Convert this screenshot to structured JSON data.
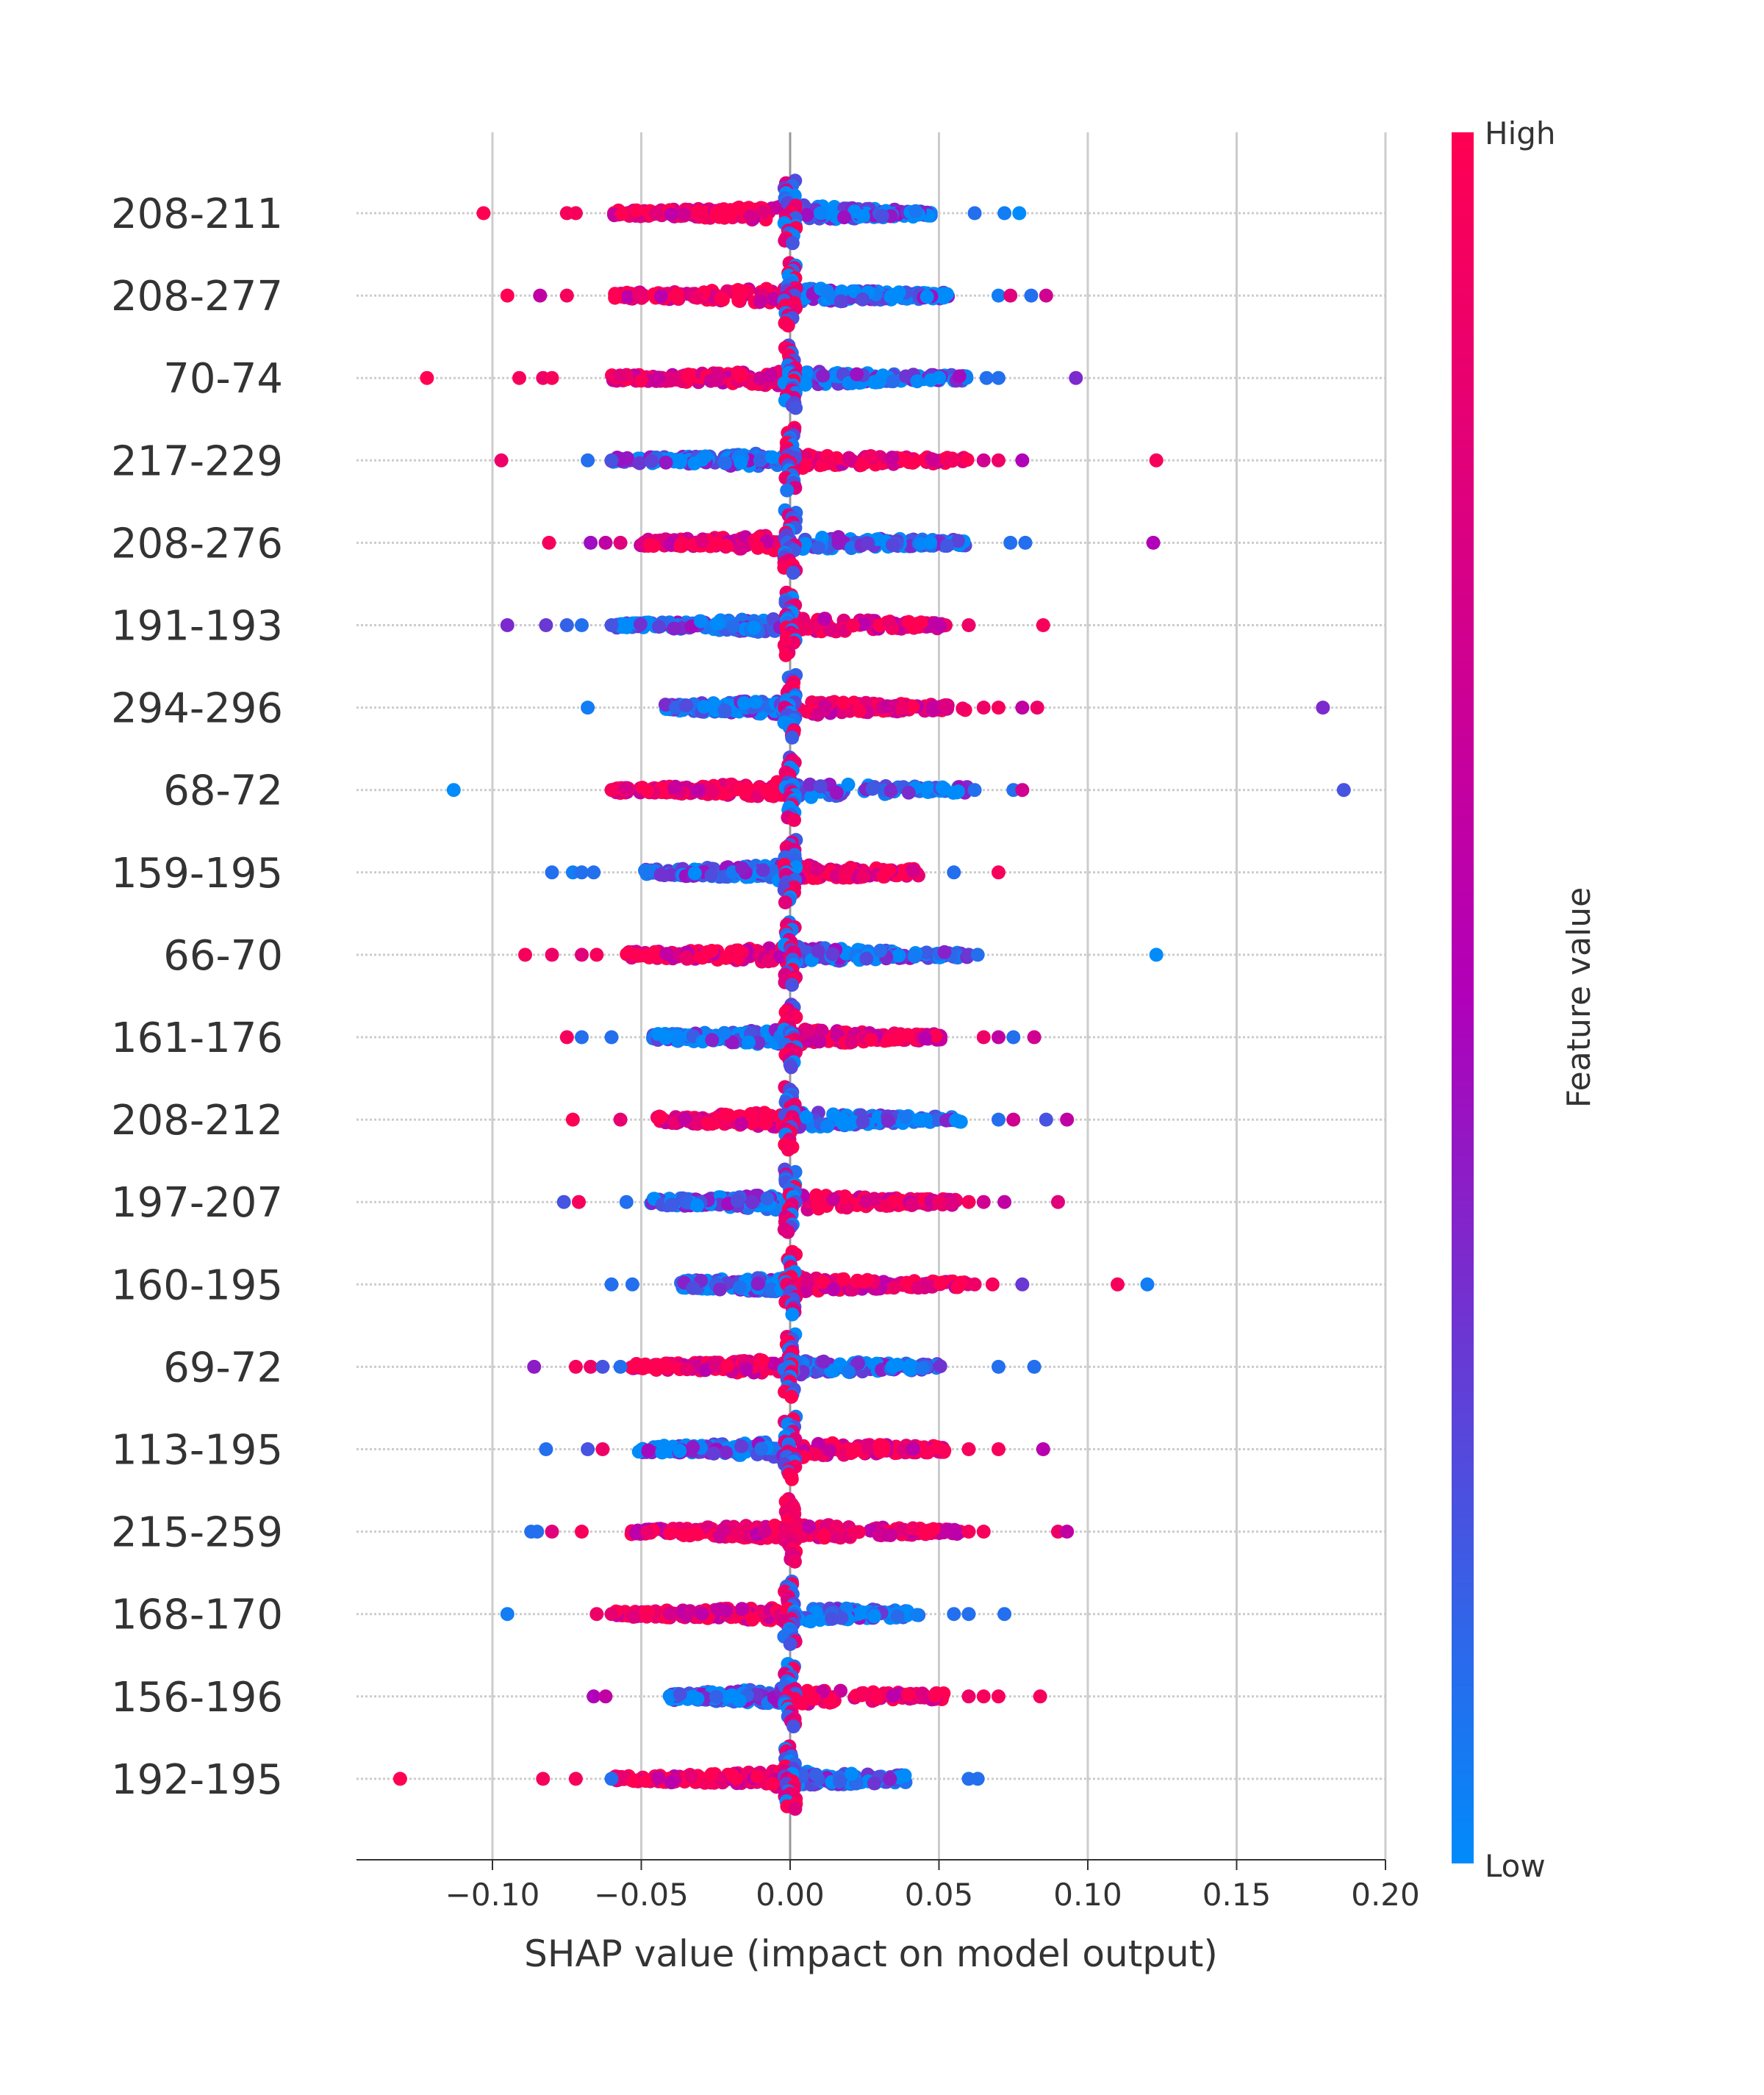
{
  "chart_data": {
    "type": "scatter",
    "subtype": "shap-beeswarm",
    "xlabel": "SHAP value (impact on model output)",
    "ylabel": "",
    "xlim": [
      -0.145,
      0.2
    ],
    "xticks": [
      -0.1,
      -0.05,
      0.0,
      0.05,
      0.1,
      0.15,
      0.2
    ],
    "xtick_labels": [
      "−0.10",
      "−0.05",
      "0.00",
      "0.05",
      "0.10",
      "0.15",
      "0.20"
    ],
    "grid": "vertical",
    "colorbar": {
      "title": "Feature value",
      "high_label": "High",
      "low_label": "Low",
      "high_color": "#ff0052",
      "mid_color": "#b100b9",
      "low_color": "#008bfb",
      "placement": "right"
    },
    "features": [
      {
        "name": "208-211",
        "min": -0.103,
        "max": 0.077,
        "neg_color": "high",
        "pos_color": "low",
        "outliers": [
          [
            -0.103,
            1.0
          ],
          [
            -0.075,
            0.95
          ],
          [
            -0.072,
            0.95
          ],
          [
            0.062,
            0.1
          ],
          [
            0.072,
            0.05
          ],
          [
            0.077,
            0.0
          ]
        ]
      },
      {
        "name": "208-277",
        "min": -0.095,
        "max": 0.086,
        "neg_color": "high",
        "pos_color": "low",
        "outliers": [
          [
            -0.095,
            1.0
          ],
          [
            -0.084,
            0.6
          ],
          [
            -0.075,
            0.95
          ],
          [
            0.07,
            0.05
          ],
          [
            0.074,
            0.8
          ],
          [
            0.081,
            0.1
          ],
          [
            0.086,
            0.7
          ]
        ]
      },
      {
        "name": "70-74",
        "min": -0.122,
        "max": 0.096,
        "neg_color": "high",
        "pos_color": "low",
        "outliers": [
          [
            -0.122,
            1.0
          ],
          [
            -0.091,
            0.95
          ],
          [
            -0.083,
            0.9
          ],
          [
            -0.08,
            0.95
          ],
          [
            0.066,
            0.1
          ],
          [
            0.07,
            0.1
          ],
          [
            0.096,
            0.35
          ]
        ]
      },
      {
        "name": "217-229",
        "min": -0.097,
        "max": 0.123,
        "neg_color": "low",
        "pos_color": "high",
        "outliers": [
          [
            -0.097,
            0.9
          ],
          [
            -0.068,
            0.1
          ],
          [
            -0.06,
            0.2
          ],
          [
            0.065,
            0.7
          ],
          [
            0.07,
            0.9
          ],
          [
            0.078,
            0.5
          ],
          [
            0.123,
            0.95
          ]
        ]
      },
      {
        "name": "208-276",
        "min": -0.081,
        "max": 0.122,
        "neg_color": "high",
        "pos_color": "low",
        "outliers": [
          [
            -0.081,
            0.95
          ],
          [
            -0.067,
            0.45
          ],
          [
            -0.062,
            0.6
          ],
          [
            -0.057,
            0.8
          ],
          [
            0.074,
            0.1
          ],
          [
            0.079,
            0.1
          ],
          [
            0.122,
            0.5
          ]
        ]
      },
      {
        "name": "191-193",
        "min": -0.095,
        "max": 0.085,
        "neg_color": "low",
        "pos_color": "high",
        "outliers": [
          [
            -0.095,
            0.35
          ],
          [
            -0.082,
            0.3
          ],
          [
            -0.075,
            0.15
          ],
          [
            -0.07,
            0.1
          ],
          [
            -0.06,
            0.2
          ],
          [
            0.06,
            0.9
          ],
          [
            0.085,
            0.95
          ]
        ]
      },
      {
        "name": "294-296",
        "min": -0.068,
        "max": 0.179,
        "neg_color": "low",
        "pos_color": "high",
        "outliers": [
          [
            -0.068,
            0.05
          ],
          [
            0.065,
            0.9
          ],
          [
            0.07,
            0.95
          ],
          [
            0.078,
            0.6
          ],
          [
            0.083,
            0.9
          ],
          [
            0.179,
            0.35
          ]
        ]
      },
      {
        "name": "68-72",
        "min": -0.113,
        "max": 0.186,
        "neg_color": "high",
        "pos_color": "low",
        "outliers": [
          [
            -0.113,
            0.0
          ],
          [
            -0.06,
            0.95
          ],
          [
            0.062,
            0.1
          ],
          [
            0.075,
            0.1
          ],
          [
            0.078,
            0.7
          ],
          [
            0.186,
            0.2
          ]
        ]
      },
      {
        "name": "159-195",
        "min": -0.08,
        "max": 0.07,
        "neg_color": "low",
        "pos_color": "high",
        "outliers": [
          [
            -0.08,
            0.1
          ],
          [
            -0.073,
            0.05
          ],
          [
            -0.07,
            0.1
          ],
          [
            -0.066,
            0.1
          ],
          [
            0.055,
            0.1
          ],
          [
            0.07,
            0.95
          ]
        ]
      },
      {
        "name": "66-70",
        "min": -0.089,
        "max": 0.123,
        "neg_color": "high",
        "pos_color": "low",
        "outliers": [
          [
            -0.089,
            0.95
          ],
          [
            -0.08,
            0.9
          ],
          [
            -0.07,
            0.8
          ],
          [
            -0.065,
            0.95
          ],
          [
            0.06,
            0.3
          ],
          [
            0.063,
            0.1
          ],
          [
            0.123,
            0.0
          ]
        ]
      },
      {
        "name": "161-176",
        "min": -0.075,
        "max": 0.082,
        "neg_color": "low",
        "pos_color": "high",
        "outliers": [
          [
            -0.075,
            0.95
          ],
          [
            -0.07,
            0.1
          ],
          [
            -0.06,
            0.1
          ],
          [
            0.065,
            0.9
          ],
          [
            0.07,
            0.6
          ],
          [
            0.075,
            0.1
          ],
          [
            0.082,
            0.7
          ]
        ]
      },
      {
        "name": "208-212",
        "min": -0.073,
        "max": 0.093,
        "neg_color": "high",
        "pos_color": "low",
        "outliers": [
          [
            -0.073,
            1.0
          ],
          [
            -0.057,
            0.85
          ],
          [
            0.07,
            0.1
          ],
          [
            0.075,
            0.7
          ],
          [
            0.086,
            0.2
          ],
          [
            0.093,
            0.6
          ]
        ]
      },
      {
        "name": "197-207",
        "min": -0.076,
        "max": 0.09,
        "neg_color": "low",
        "pos_color": "high",
        "outliers": [
          [
            -0.076,
            0.2
          ],
          [
            -0.071,
            0.95
          ],
          [
            -0.055,
            0.1
          ],
          [
            0.05,
            0.9
          ],
          [
            0.06,
            0.95
          ],
          [
            0.065,
            0.7
          ],
          [
            0.072,
            0.6
          ],
          [
            0.09,
            0.8
          ]
        ]
      },
      {
        "name": "160-195",
        "min": -0.06,
        "max": 0.12,
        "neg_color": "low",
        "pos_color": "high",
        "outliers": [
          [
            -0.06,
            0.1
          ],
          [
            -0.053,
            0.1
          ],
          [
            0.062,
            0.9
          ],
          [
            0.068,
            0.95
          ],
          [
            0.078,
            0.3
          ],
          [
            0.11,
            0.95
          ],
          [
            0.12,
            0.05
          ]
        ]
      },
      {
        "name": "69-72",
        "min": -0.086,
        "max": 0.082,
        "neg_color": "high",
        "pos_color": "low",
        "outliers": [
          [
            -0.086,
            0.4
          ],
          [
            -0.072,
            0.95
          ],
          [
            -0.067,
            0.9
          ],
          [
            -0.063,
            0.2
          ],
          [
            -0.057,
            0.1
          ],
          [
            0.07,
            0.1
          ],
          [
            0.082,
            0.1
          ]
        ]
      },
      {
        "name": "113-195",
        "min": -0.082,
        "max": 0.085,
        "neg_color": "low",
        "pos_color": "high",
        "outliers": [
          [
            -0.082,
            0.1
          ],
          [
            -0.068,
            0.2
          ],
          [
            -0.063,
            0.9
          ],
          [
            0.06,
            0.95
          ],
          [
            0.07,
            0.95
          ],
          [
            0.085,
            0.55
          ]
        ]
      },
      {
        "name": "215-259",
        "min": -0.087,
        "max": 0.093,
        "neg_color": "high",
        "pos_color": "high",
        "outliers": [
          [
            -0.087,
            0.1
          ],
          [
            -0.085,
            0.1
          ],
          [
            -0.08,
            0.8
          ],
          [
            -0.07,
            0.95
          ],
          [
            0.06,
            0.95
          ],
          [
            0.065,
            0.95
          ],
          [
            0.09,
            0.9
          ],
          [
            0.093,
            0.6
          ]
        ]
      },
      {
        "name": "168-170",
        "min": -0.095,
        "max": 0.072,
        "neg_color": "high",
        "pos_color": "low",
        "outliers": [
          [
            -0.095,
            0.05
          ],
          [
            -0.065,
            0.9
          ],
          [
            -0.06,
            0.85
          ],
          [
            0.055,
            0.1
          ],
          [
            0.06,
            0.1
          ],
          [
            0.072,
            0.1
          ]
        ]
      },
      {
        "name": "156-196",
        "min": -0.066,
        "max": 0.084,
        "neg_color": "low",
        "pos_color": "high",
        "outliers": [
          [
            -0.066,
            0.5
          ],
          [
            -0.062,
            0.6
          ],
          [
            0.06,
            0.9
          ],
          [
            0.065,
            0.95
          ],
          [
            0.07,
            0.95
          ],
          [
            0.084,
            0.95
          ]
        ]
      },
      {
        "name": "192-195",
        "min": -0.131,
        "max": 0.063,
        "neg_color": "high",
        "pos_color": "low",
        "outliers": [
          [
            -0.131,
            1.0
          ],
          [
            -0.083,
            0.95
          ],
          [
            -0.072,
            0.95
          ],
          [
            -0.06,
            0.1
          ],
          [
            0.06,
            0.1
          ],
          [
            0.063,
            0.1
          ]
        ]
      }
    ]
  }
}
